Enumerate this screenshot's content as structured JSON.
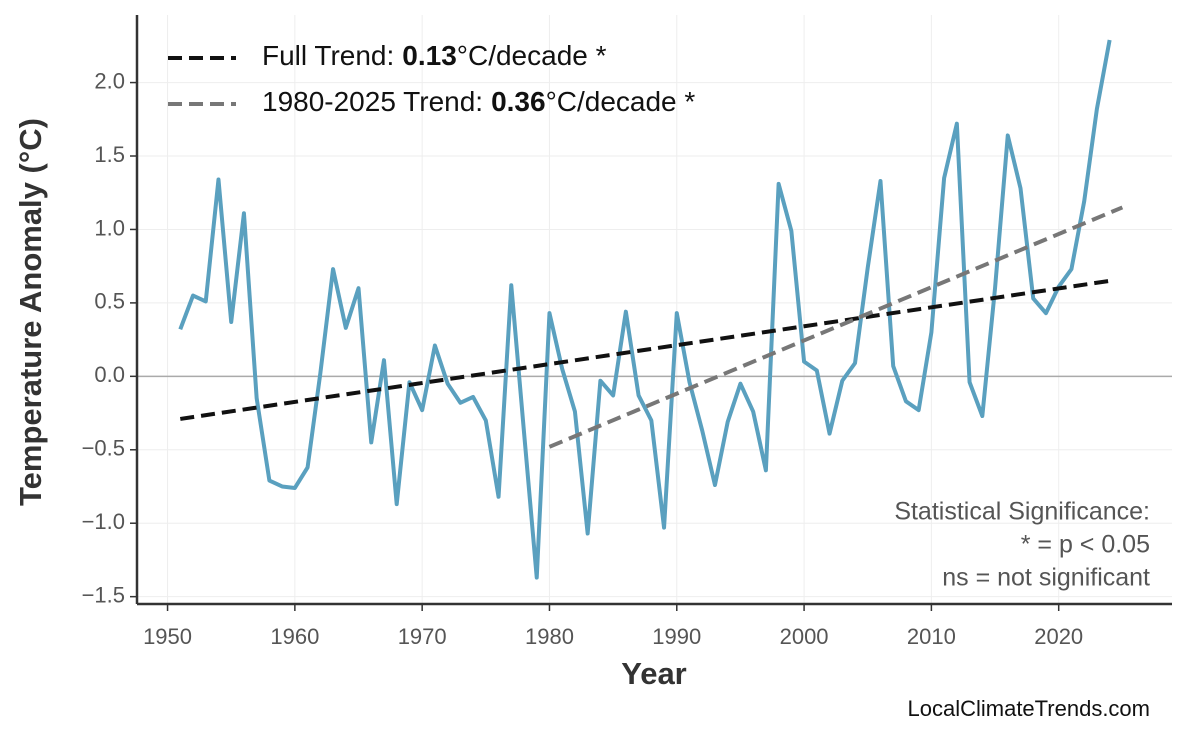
{
  "chart_data": {
    "type": "line",
    "xlabel": "Year",
    "ylabel": "Temperature Anomaly (°C)",
    "xlim": [
      1947.6,
      2028.9
    ],
    "ylim": [
      -1.55,
      2.46
    ],
    "xticks": [
      1950,
      1960,
      1970,
      1980,
      1990,
      2000,
      2010,
      2020
    ],
    "yticks": [
      {
        "value": -1.5,
        "label": "−1.5"
      },
      {
        "value": -1.0,
        "label": "−1.0"
      },
      {
        "value": -0.5,
        "label": "−0.5"
      },
      {
        "value": 0,
        "label": "0.0"
      },
      0.5,
      {
        "value": 1.0,
        "label": "1.0"
      },
      1.5,
      {
        "value": 2.0,
        "label": "2.0"
      }
    ],
    "grid": true,
    "hline": 0,
    "series": [
      {
        "color": "#5aa0bf",
        "x": [
          1951,
          1952,
          1953,
          1954,
          1955,
          1956,
          1957,
          1958,
          1959,
          1960,
          1961,
          1962,
          1963,
          1964,
          1965,
          1966,
          1967,
          1968,
          1969,
          1970,
          1971,
          1972,
          1973,
          1974,
          1975,
          1976,
          1977,
          1978,
          1979,
          1980,
          1981,
          1982,
          1983,
          1984,
          1985,
          1986,
          1987,
          1988,
          1989,
          1990,
          1991,
          1992,
          1993,
          1994,
          1995,
          1996,
          1997,
          1998,
          1999,
          2000,
          2001,
          2002,
          2003,
          2004,
          2005,
          2006,
          2007,
          2008,
          2009,
          2010,
          2011,
          2012,
          2013,
          2014,
          2015,
          2016,
          2017,
          2018,
          2019,
          2020,
          2021,
          2022,
          2023,
          2024
        ],
        "values": [
          0.32,
          0.55,
          0.51,
          1.34,
          0.37,
          1.11,
          -0.15,
          -0.71,
          -0.75,
          -0.76,
          -0.62,
          0.02,
          0.73,
          0.33,
          0.6,
          -0.45,
          0.11,
          -0.87,
          -0.04,
          -0.23,
          0.21,
          -0.05,
          -0.18,
          -0.14,
          -0.3,
          -0.82,
          0.62,
          -0.38,
          -1.37,
          0.43,
          0.05,
          -0.24,
          -1.07,
          -0.03,
          -0.13,
          0.44,
          -0.13,
          -0.3,
          -1.03,
          0.43,
          -0.04,
          -0.37,
          -0.74,
          -0.31,
          -0.05,
          -0.24,
          -0.64,
          1.31,
          0.99,
          0.1,
          0.04,
          -0.39,
          -0.03,
          0.09,
          0.74,
          1.33,
          0.07,
          -0.17,
          -0.23,
          0.3,
          1.35,
          1.72,
          -0.04,
          -0.27,
          0.6,
          1.64,
          1.28,
          0.53,
          0.43,
          0.61,
          0.73,
          1.19,
          1.82,
          2.29
        ]
      },
      {
        "name": "Full Trend:",
        "rate": 0.13,
        "unit": "°C/decade *",
        "color": "#111111",
        "dashed": true,
        "x": [
          1951,
          2024
        ],
        "values": [
          -0.29,
          0.65
        ]
      },
      {
        "name": "1980-2025 Trend:",
        "rate": 0.36,
        "unit": "°C/decade *",
        "color": "#777777",
        "dashed": true,
        "x": [
          1980,
          2025
        ],
        "values": [
          -0.48,
          1.15
        ]
      }
    ],
    "annotation": [
      "Statistical Significance:",
      "* = p < 0.05",
      "ns = not significant"
    ],
    "source": "LocalClimateTrends.com"
  }
}
